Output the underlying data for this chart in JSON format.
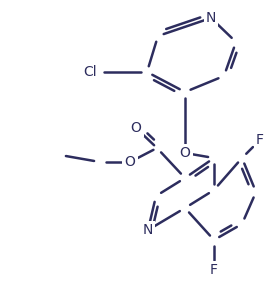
{
  "bg_color": "#ffffff",
  "line_color": "#2d2d5e",
  "line_width": 1.8,
  "figsize": [
    2.78,
    2.96
  ],
  "dpi": 100,
  "xlim": [
    0,
    278
  ],
  "ylim": [
    0,
    296
  ]
}
